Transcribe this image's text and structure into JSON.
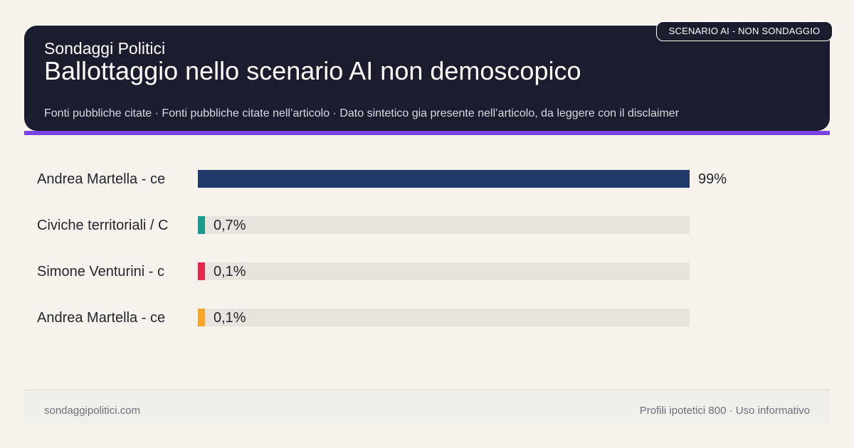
{
  "header": {
    "badge": "SCENARIO AI - NON SONDAGGIO",
    "brand": "Sondaggi Politici",
    "title": "Ballottaggio nello scenario AI non demoscopico",
    "subtitle": "Fonti pubbliche citate · Fonti pubbliche citate nell’articolo · Dato sintetico gia presente nell’articolo, da leggere con il disclaimer"
  },
  "chart_data": {
    "type": "bar",
    "orientation": "horizontal",
    "categories": [
      "Andrea Martella - ce",
      "Civiche territoriali / C",
      "Simone Venturini - c",
      "Andrea Martella - ce"
    ],
    "values": [
      99,
      0.7,
      0.1,
      0.1
    ],
    "value_labels": [
      "99%",
      "0,7%",
      "0,1%",
      "0,1%"
    ],
    "colors": [
      "#1f3a68",
      "#1a9a8a",
      "#e3284f",
      "#f5a623"
    ],
    "track_color": "#e8e3dc",
    "xlim": [
      0,
      99
    ],
    "grid": false
  },
  "footer": {
    "site": "sondaggipolitici.com",
    "note": "Profili ipotetici 800 · Uso informativo"
  }
}
